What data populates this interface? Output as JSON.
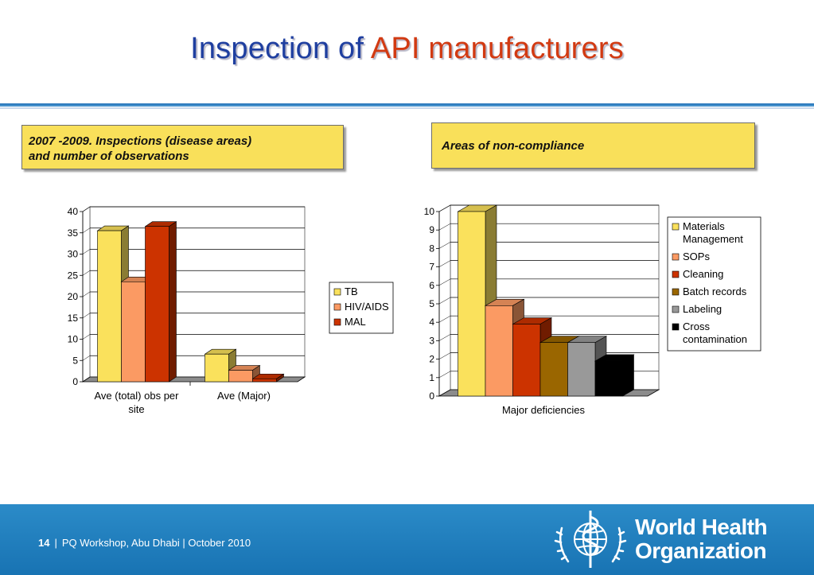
{
  "slide": {
    "title_part1": "Inspection of",
    "title_part2": "API manufacturers",
    "box_left_line1": "2007 -2009. Inspections (disease areas)",
    "box_left_line2": "and number of observations",
    "box_right": "Areas of non-compliance",
    "footer_page": "14",
    "footer_sep": "|",
    "footer_text": "PQ Workshop, Abu Dhabi  |  October 2010",
    "org_line1": "World Health",
    "org_line2": "Organization"
  },
  "colors": {
    "title": "#1f3fa0",
    "title_accent": "#d23a12",
    "box_fill": "#f9e05a",
    "footer": "#1f7dbd"
  },
  "chart_data": [
    {
      "type": "bar",
      "categories": [
        "Ave (total) obs per site",
        "Ave (Major)"
      ],
      "series": [
        {
          "name": "TB",
          "values": [
            35.5,
            6.5
          ],
          "color": "#fae15c"
        },
        {
          "name": "HIV/AIDS",
          "values": [
            23.5,
            2.7
          ],
          "color": "#fb9a63"
        },
        {
          "name": "MAL",
          "values": [
            36.5,
            0.7
          ],
          "color": "#cc3300"
        }
      ],
      "yticks": [
        "0",
        "5",
        "10",
        "15",
        "20",
        "25",
        "30",
        "35",
        "40"
      ],
      "ylim": [
        0,
        40
      ],
      "grid": true,
      "legend": "right"
    },
    {
      "type": "bar",
      "categories": [
        "Major deficiencies"
      ],
      "series": [
        {
          "name": "Materials Management",
          "values": [
            10
          ],
          "color": "#fae15c"
        },
        {
          "name": "SOPs",
          "values": [
            4.9
          ],
          "color": "#fb9a63"
        },
        {
          "name": "Cleaning",
          "values": [
            3.9
          ],
          "color": "#cc3300"
        },
        {
          "name": "Batch records",
          "values": [
            2.9
          ],
          "color": "#9a6600"
        },
        {
          "name": "Labeling",
          "values": [
            2.9
          ],
          "color": "#999999"
        },
        {
          "name": "Cross contamination",
          "values": [
            1.9
          ],
          "color": "#000000"
        }
      ],
      "yticks": [
        "0",
        "1",
        "2",
        "3",
        "4",
        "5",
        "6",
        "7",
        "8",
        "9",
        "10"
      ],
      "ylim": [
        0,
        10
      ],
      "grid": true,
      "legend": "right"
    }
  ]
}
